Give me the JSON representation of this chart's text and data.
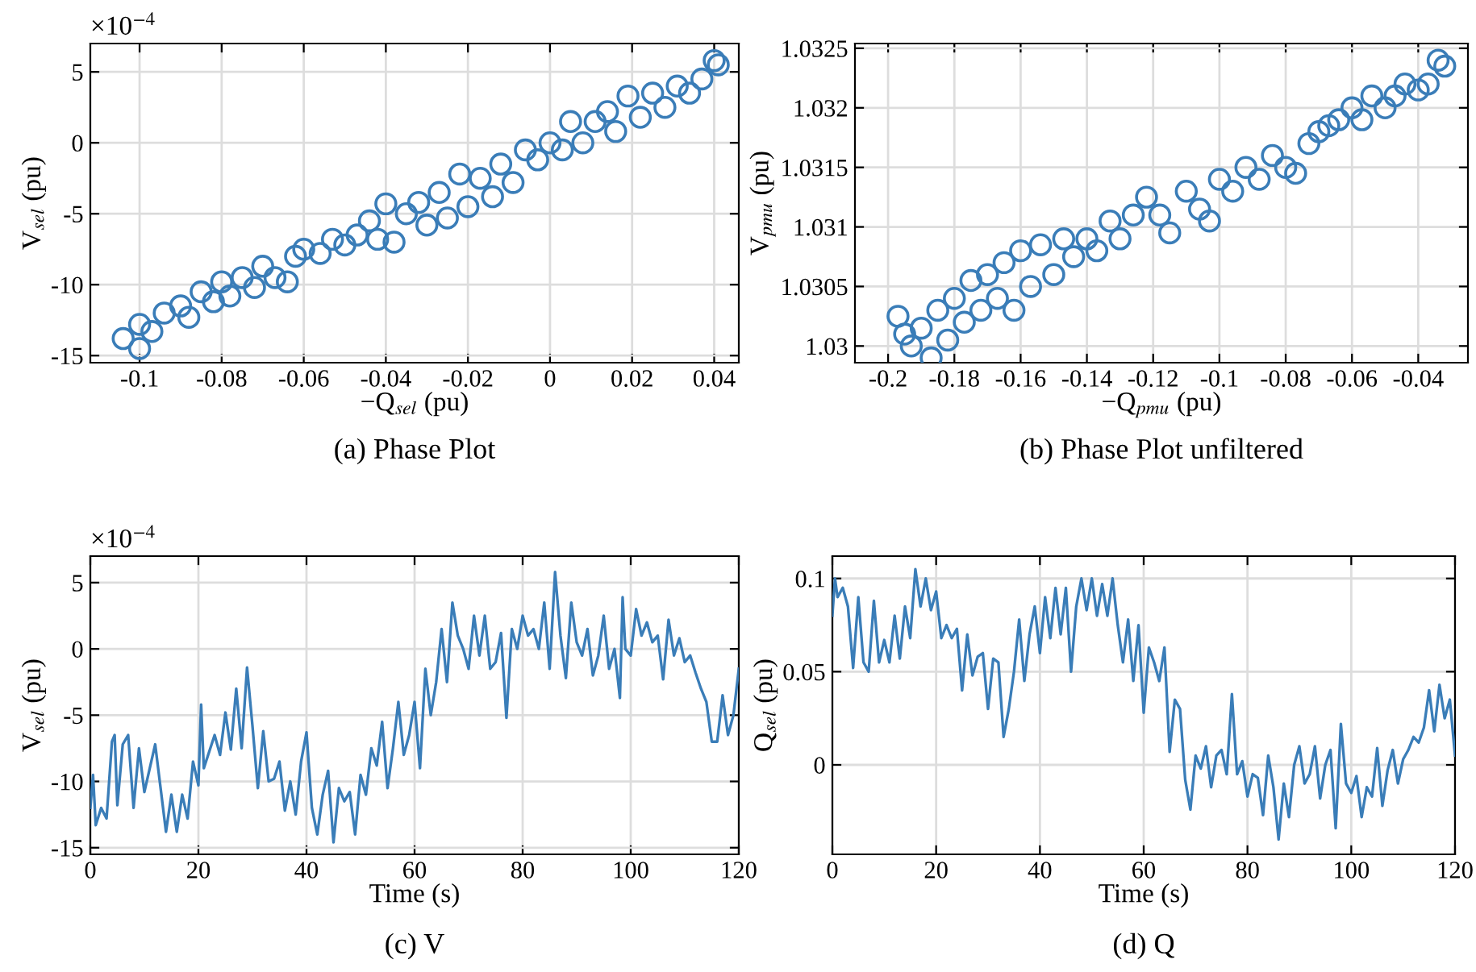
{
  "chart_data": [
    {
      "type": "scatter",
      "title": "(a) Phase Plot",
      "xlabel": "−Q$_{sel}$ (pu)",
      "ylabel": "V$_{sel}$ (pu)",
      "annotations": [
        "×10$^{−4}$"
      ],
      "xlim": [
        -0.112,
        0.046
      ],
      "ylim": [
        -15.5,
        7
      ],
      "xticks": [
        -0.1,
        -0.08,
        -0.06,
        -0.04,
        -0.02,
        0,
        0.02,
        0.04
      ],
      "yticks": [
        -15,
        -10,
        -5,
        0,
        5
      ],
      "grid": true,
      "marker": "circle",
      "series": [
        {
          "color": "#3a7db8",
          "x": [
            -0.104,
            -0.1,
            -0.1,
            -0.097,
            -0.094,
            -0.09,
            -0.088,
            -0.085,
            -0.082,
            -0.08,
            -0.078,
            -0.075,
            -0.072,
            -0.07,
            -0.067,
            -0.064,
            -0.062,
            -0.06,
            -0.056,
            -0.053,
            -0.05,
            -0.047,
            -0.044,
            -0.042,
            -0.04,
            -0.038,
            -0.035,
            -0.032,
            -0.03,
            -0.027,
            -0.025,
            -0.022,
            -0.02,
            -0.017,
            -0.014,
            -0.012,
            -0.009,
            -0.006,
            -0.003,
            0,
            0.003,
            0.005,
            0.008,
            0.011,
            0.014,
            0.016,
            0.019,
            0.022,
            0.025,
            0.028,
            0.031,
            0.034,
            0.037,
            0.04,
            0.041
          ],
          "values": [
            -13.8,
            -14.5,
            -12.8,
            -13.3,
            -12,
            -11.5,
            -12.3,
            -10.5,
            -11.2,
            -9.8,
            -10.8,
            -9.5,
            -10.2,
            -8.7,
            -9.5,
            -9.8,
            -8,
            -7.5,
            -7.8,
            -6.8,
            -7.2,
            -6.5,
            -5.5,
            -6.8,
            -4.3,
            -7,
            -5,
            -4.2,
            -5.8,
            -3.5,
            -5.3,
            -2.2,
            -4.5,
            -2.5,
            -3.8,
            -1.5,
            -2.8,
            -0.5,
            -1.2,
            0,
            -0.5,
            1.5,
            0,
            1.5,
            2.2,
            0.8,
            3.3,
            1.8,
            3.5,
            2.5,
            4,
            3.5,
            4.5,
            5.8,
            5.5
          ]
        }
      ]
    },
    {
      "type": "scatter",
      "title": "(b) Phase Plot unfiltered",
      "xlabel": "−Q$_{pmu}$ (pu)",
      "ylabel": "V$_{pmu}$ (pu)",
      "xlim": [
        -0.21,
        -0.025
      ],
      "ylim": [
        1.02986,
        1.03254
      ],
      "xticks": [
        -0.2,
        -0.18,
        -0.16,
        -0.14,
        -0.12,
        -0.1,
        -0.08,
        -0.06,
        -0.04
      ],
      "yticks": [
        1.03,
        1.0305,
        1.031,
        1.0315,
        1.032,
        1.0325
      ],
      "grid": true,
      "marker": "circle",
      "series": [
        {
          "color": "#3a7db8",
          "x": [
            -0.197,
            -0.195,
            -0.193,
            -0.19,
            -0.187,
            -0.185,
            -0.182,
            -0.18,
            -0.177,
            -0.175,
            -0.172,
            -0.17,
            -0.167,
            -0.165,
            -0.162,
            -0.16,
            -0.157,
            -0.154,
            -0.15,
            -0.147,
            -0.144,
            -0.14,
            -0.137,
            -0.133,
            -0.13,
            -0.126,
            -0.122,
            -0.118,
            -0.115,
            -0.11,
            -0.106,
            -0.103,
            -0.1,
            -0.096,
            -0.092,
            -0.088,
            -0.084,
            -0.08,
            -0.077,
            -0.073,
            -0.07,
            -0.067,
            -0.064,
            -0.06,
            -0.057,
            -0.054,
            -0.05,
            -0.047,
            -0.044,
            -0.04,
            -0.037,
            -0.034,
            -0.032
          ],
          "values": [
            1.03025,
            1.0301,
            1.03,
            1.03015,
            1.0299,
            1.0303,
            1.03005,
            1.0304,
            1.0302,
            1.03055,
            1.0303,
            1.0306,
            1.0304,
            1.0307,
            1.0303,
            1.0308,
            1.0305,
            1.03085,
            1.0306,
            1.0309,
            1.03075,
            1.0309,
            1.0308,
            1.03105,
            1.0309,
            1.0311,
            1.03125,
            1.0311,
            1.03095,
            1.0313,
            1.03115,
            1.03105,
            1.0314,
            1.0313,
            1.0315,
            1.0314,
            1.0316,
            1.0315,
            1.03145,
            1.0317,
            1.0318,
            1.03185,
            1.0319,
            1.032,
            1.0319,
            1.0321,
            1.032,
            1.0321,
            1.0322,
            1.03215,
            1.0322,
            1.0324,
            1.03235
          ]
        }
      ]
    },
    {
      "type": "line",
      "title": "(c) V",
      "xlabel": "Time (s)",
      "ylabel": "V$_{sel}$ (pu)",
      "annotations": [
        "×10$^{−4}$"
      ],
      "xlim": [
        0,
        120
      ],
      "ylim": [
        -15.5,
        7
      ],
      "xticks": [
        0,
        20,
        40,
        60,
        80,
        100,
        120
      ],
      "yticks": [
        -15,
        -10,
        -5,
        0,
        5
      ],
      "grid": true,
      "series": [
        {
          "color": "#3a7db8",
          "x": [
            0,
            0.5,
            1,
            2,
            3,
            4,
            4.5,
            5,
            6,
            7,
            8,
            9,
            10,
            11,
            12,
            13,
            14,
            15,
            16,
            17,
            18,
            19,
            20,
            20.5,
            21,
            23,
            24,
            25,
            26,
            27,
            28,
            29,
            30,
            31,
            32,
            33,
            34,
            35,
            36,
            37,
            38,
            39,
            40,
            41,
            42,
            43,
            44,
            45,
            46,
            47,
            48,
            49,
            50,
            51,
            52,
            53,
            54,
            55,
            56,
            57,
            58,
            59,
            60,
            61,
            62,
            63,
            64,
            65,
            66,
            67,
            68,
            69,
            70,
            71,
            72,
            73,
            74,
            75,
            76,
            77,
            78,
            79,
            80,
            81,
            82,
            83,
            84,
            85,
            86,
            87,
            88,
            89,
            90,
            91,
            92,
            93,
            94,
            95,
            96,
            97,
            98,
            98.5,
            99,
            100,
            101,
            102,
            103,
            104,
            105,
            106,
            107,
            108,
            109,
            110,
            111,
            112,
            113,
            114,
            115,
            116,
            117,
            118,
            119,
            120
          ],
          "values": [
            -12,
            -9.5,
            -13.3,
            -12,
            -12.8,
            -7,
            -6.5,
            -11.8,
            -7.2,
            -6.5,
            -12,
            -7.5,
            -10.8,
            -9,
            -7.2,
            -10.5,
            -13.8,
            -11,
            -13.8,
            -11,
            -12.8,
            -8.5,
            -10.3,
            -4.2,
            -9,
            -6.5,
            -8,
            -4.8,
            -7.6,
            -3,
            -7.5,
            -1.4,
            -5.8,
            -10.5,
            -6.2,
            -10,
            -9.8,
            -8.5,
            -12.2,
            -10,
            -12.5,
            -8.5,
            -6.3,
            -12,
            -14,
            -11,
            -9.2,
            -14.6,
            -10.5,
            -11.5,
            -10.8,
            -14,
            -9.5,
            -11,
            -7.5,
            -8.8,
            -5.5,
            -10.5,
            -7.5,
            -4,
            -8,
            -6.5,
            -4,
            -9,
            -1.5,
            -5,
            -2.5,
            1.5,
            -2.5,
            3.5,
            1,
            0,
            -1.5,
            2.5,
            -0.5,
            2.5,
            -1.5,
            -1,
            1.2,
            -5.2,
            1.5,
            0,
            2.5,
            1,
            1.5,
            0,
            3.5,
            -1.5,
            5.8,
            1,
            -2.2,
            3.5,
            0.5,
            -0.5,
            1.5,
            -2,
            -0.5,
            2.5,
            -1.5,
            0,
            -3.7,
            3.9,
            0,
            -0.5,
            3,
            1,
            2,
            0.5,
            1,
            -2.3,
            2.2,
            -0.5,
            0.8,
            -1,
            -0.5,
            -1.8,
            -3,
            -4,
            -7,
            -7,
            -3.5,
            -6.5,
            -5,
            -1.5
          ]
        }
      ]
    },
    {
      "type": "line",
      "title": "(d) Q",
      "xlabel": "Time (s)",
      "ylabel": "Q$_{sel}$ (pu)",
      "xlim": [
        0,
        120
      ],
      "ylim": [
        -0.048,
        0.112
      ],
      "xticks": [
        0,
        20,
        40,
        60,
        80,
        100,
        120
      ],
      "yticks": [
        0,
        0.05,
        0.1
      ],
      "grid": true,
      "series": [
        {
          "color": "#3a7db8",
          "x": [
            0,
            0.5,
            1,
            2,
            3,
            4,
            5,
            6,
            7,
            8,
            9,
            10,
            11,
            12,
            13,
            14,
            15,
            16,
            17,
            18,
            19,
            20,
            21,
            22,
            23,
            24,
            25,
            26,
            27,
            28,
            29,
            30,
            31,
            32,
            33,
            34,
            35,
            36,
            37,
            38,
            39,
            40,
            41,
            42,
            43,
            44,
            45,
            46,
            47,
            48,
            49,
            50,
            51,
            52,
            53,
            54,
            55,
            56,
            57,
            58,
            59,
            60,
            61,
            62,
            63,
            64,
            65,
            66,
            67,
            68,
            69,
            70,
            71,
            72,
            73,
            74,
            75,
            76,
            77,
            78,
            79,
            80,
            81,
            82,
            83,
            84,
            85,
            86,
            87,
            88,
            89,
            90,
            91,
            92,
            93,
            94,
            95,
            96,
            97,
            98,
            99,
            100,
            101,
            102,
            103,
            104,
            105,
            106,
            107,
            108,
            109,
            110,
            111,
            112,
            113,
            114,
            115,
            116,
            117,
            118,
            119,
            120
          ],
          "values": [
            0.08,
            0.1,
            0.09,
            0.095,
            0.085,
            0.052,
            0.09,
            0.055,
            0.05,
            0.088,
            0.055,
            0.067,
            0.055,
            0.08,
            0.057,
            0.085,
            0.068,
            0.105,
            0.085,
            0.1,
            0.083,
            0.093,
            0.068,
            0.075,
            0.068,
            0.073,
            0.04,
            0.07,
            0.048,
            0.058,
            0.06,
            0.03,
            0.057,
            0.055,
            0.015,
            0.03,
            0.05,
            0.078,
            0.045,
            0.07,
            0.085,
            0.06,
            0.09,
            0.068,
            0.095,
            0.07,
            0.095,
            0.05,
            0.085,
            0.1,
            0.083,
            0.1,
            0.08,
            0.097,
            0.08,
            0.1,
            0.075,
            0.055,
            0.078,
            0.045,
            0.075,
            0.028,
            0.063,
            0.055,
            0.045,
            0.063,
            0.007,
            0.035,
            0.03,
            -0.008,
            -0.024,
            0.005,
            -0.002,
            0.01,
            -0.012,
            0.005,
            0.008,
            -0.005,
            0.038,
            -0.005,
            0.002,
            -0.017,
            -0.005,
            -0.007,
            -0.027,
            0.005,
            -0.012,
            -0.04,
            -0.01,
            -0.028,
            0,
            0.01,
            -0.01,
            -0.005,
            0.01,
            -0.018,
            0,
            0.008,
            -0.034,
            0.022,
            -0.01,
            -0.015,
            -0.006,
            -0.028,
            -0.012,
            -0.017,
            0.009,
            -0.022,
            -0.003,
            0.008,
            -0.01,
            0.003,
            0.008,
            0.015,
            0.012,
            0.02,
            0.04,
            0.018,
            0.043,
            0.025,
            0.035,
            0.005
          ]
        }
      ]
    }
  ]
}
